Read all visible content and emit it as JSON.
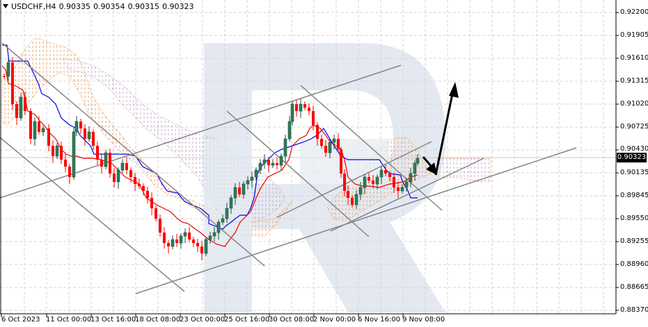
{
  "header": {
    "symbol_timeframe": "USDCHF,H4",
    "open": "0.90335",
    "high": "0.90354",
    "low": "0.90315",
    "close": "0.90323"
  },
  "price_axis": {
    "labels": [
      "0.92200",
      "0.91905",
      "0.91610",
      "0.91315",
      "0.91020",
      "0.90725",
      "0.90430",
      "0.90135",
      "0.89845",
      "0.89550",
      "0.89255",
      "0.88960",
      "0.88665",
      "0.88370"
    ],
    "current_price": "0.90323"
  },
  "time_axis": {
    "labels": [
      "6 Oct 2023",
      "11 Oct 00:00",
      "13 Oct 16:00",
      "18 Oct 08:00",
      "23 Oct 00:00",
      "25 Oct 16:00",
      "30 Oct 08:00",
      "2 Nov 00:00",
      "6 Nov 16:00",
      "9 Nov 08:00"
    ]
  },
  "colors": {
    "bull_candle": "#2e7d5b",
    "bear_candle": "#ff0000",
    "tenkan": "#ff0000",
    "kijun": "#0000ff",
    "cloud_bull": "#f4a460",
    "cloud_bear": "#d8bfd8",
    "trend_lines": "#808080",
    "arrows": "#000000",
    "grid": "#d9d9d9",
    "watermark": "#e3e8f0"
  },
  "chart_data": {
    "type": "candlestick",
    "title": "USDCHF,H4",
    "indicators": [
      "Ichimoku Kinko Hyo (Tenkan-sen red, Kijun-sen blue, Kumo cloud)"
    ],
    "xlabel": "",
    "ylabel": "",
    "ylim": [
      0.8837,
      0.922
    ],
    "y_ticks": [
      0.922,
      0.91905,
      0.9161,
      0.91315,
      0.9102,
      0.90725,
      0.9043,
      0.90135,
      0.89845,
      0.8955,
      0.89255,
      0.8896,
      0.88665,
      0.8837
    ],
    "x_ticks": [
      "6 Oct 2023",
      "11 Oct 00:00",
      "13 Oct 16:00",
      "18 Oct 08:00",
      "23 Oct 00:00",
      "25 Oct 16:00",
      "30 Oct 08:00",
      "2 Nov 00:00",
      "6 Nov 16:00",
      "9 Nov 08:00"
    ],
    "last_bar": {
      "open": 0.90335,
      "high": 0.90354,
      "low": 0.90315,
      "close": 0.90323
    },
    "approx_path": [
      {
        "t": "6 Oct 2023",
        "price": 0.917
      },
      {
        "t": "11 Oct 00:00",
        "price": 0.9065
      },
      {
        "t": "13 Oct 16:00",
        "price": 0.9032
      },
      {
        "t": "18 Oct 08:00",
        "price": 0.9
      },
      {
        "t": "23 Oct 00:00",
        "price": 0.8905
      },
      {
        "t": "25 Oct 16:00",
        "price": 0.898
      },
      {
        "t": "30 Oct 08:00",
        "price": 0.9095
      },
      {
        "t": "2 Nov 00:00",
        "price": 0.9055
      },
      {
        "t": "6 Nov 16:00",
        "price": 0.896
      },
      {
        "t": "9 Nov 08:00",
        "price": 0.9032
      }
    ],
    "forecast": {
      "pullback_target": 0.9015,
      "upside_target": 0.913,
      "description": "Short pullback down to ~0.9015 then rally toward ~0.9130"
    }
  }
}
